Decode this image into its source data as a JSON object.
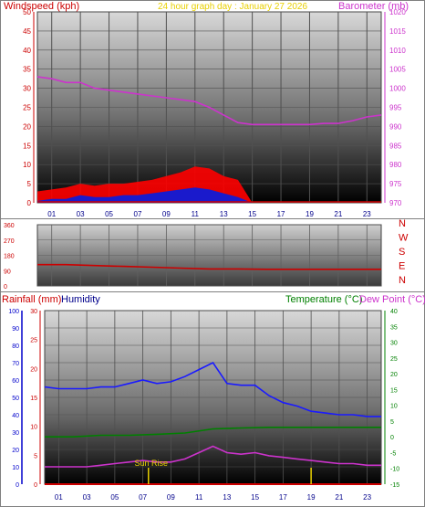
{
  "chart_data": [
    {
      "type": "line",
      "title": "24 hour graph day : January 27 2026",
      "left_axis_label": "Windspeed (kph)",
      "right_axis_label": "Barometer (mb)",
      "x_ticks": [
        "01",
        "03",
        "05",
        "07",
        "09",
        "11",
        "13",
        "15",
        "17",
        "19",
        "21",
        "23"
      ],
      "y_left_range": [
        0,
        50
      ],
      "y_left_ticks": [
        0,
        5,
        10,
        15,
        20,
        25,
        30,
        35,
        40,
        45,
        50
      ],
      "y_right_range": [
        970,
        1020
      ],
      "y_right_ticks": [
        970,
        975,
        980,
        985,
        990,
        995,
        1000,
        1005,
        1010,
        1015,
        1020
      ],
      "grid": true,
      "series": [
        {
          "name": "Barometer (mb)",
          "color": "#cc33cc",
          "axis": "right",
          "x": [
            0,
            1,
            2,
            3,
            4,
            5,
            6,
            7,
            8,
            9,
            10,
            11,
            12,
            13,
            14,
            15,
            16,
            17,
            18,
            19,
            20,
            21,
            22,
            23,
            24
          ],
          "values": [
            1003,
            1002.5,
            1001.5,
            1001.5,
            1000,
            999.5,
            999,
            998.5,
            998,
            997.5,
            997,
            996.5,
            995,
            993,
            991,
            990.5,
            990.5,
            990.5,
            990.5,
            990.5,
            990.8,
            990.8,
            991.5,
            992.5,
            993
          ]
        },
        {
          "name": "Wind gust",
          "color": "#ff0000",
          "axis": "left",
          "x": [
            0,
            1,
            2,
            3,
            4,
            5,
            6,
            7,
            8,
            9,
            10,
            11,
            12,
            13,
            14,
            15
          ],
          "values": [
            3,
            3.5,
            4,
            5,
            4.5,
            5,
            5,
            5.5,
            6,
            7,
            8,
            9.5,
            9,
            7,
            6,
            0
          ]
        },
        {
          "name": "Wind speed",
          "color": "#0000cc",
          "axis": "left",
          "x": [
            0,
            1,
            2,
            3,
            4,
            5,
            6,
            7,
            8,
            9,
            10,
            11,
            12,
            13,
            14,
            15
          ],
          "values": [
            0.5,
            1,
            1,
            2,
            1.5,
            1.5,
            2,
            2,
            2.5,
            3,
            3.5,
            4,
            3.5,
            2.5,
            1.5,
            0
          ]
        }
      ]
    },
    {
      "type": "line",
      "title": "",
      "x_ticks": [
        "01",
        "03",
        "05",
        "07",
        "09",
        "11",
        "13",
        "15",
        "17",
        "19",
        "21",
        "23"
      ],
      "y_range": [
        0,
        360
      ],
      "y_ticks": [
        0,
        90,
        180,
        270,
        360
      ],
      "direction_labels": [
        "N",
        "W",
        "S",
        "E",
        "N"
      ],
      "grid": true,
      "series": [
        {
          "name": "Wind direction",
          "color": "#cc0000",
          "x": [
            0,
            2,
            4,
            6,
            8,
            10,
            12,
            14,
            16,
            18,
            20,
            22,
            24
          ],
          "values": [
            125,
            125,
            120,
            115,
            110,
            105,
            100,
            100,
            98,
            98,
            98,
            98,
            98
          ]
        }
      ]
    },
    {
      "type": "line",
      "title": "",
      "left_axis_label_1": "Rainfall (mm)",
      "left_axis_label_2": "Humidity",
      "right_axis_label_1": "Temperature (°C)",
      "right_axis_label_2": "Dew Point (°C)",
      "x_ticks": [
        "01",
        "03",
        "05",
        "07",
        "09",
        "11",
        "13",
        "15",
        "17",
        "19",
        "21",
        "23"
      ],
      "humidity_range": [
        0,
        100
      ],
      "humidity_ticks": [
        0,
        10,
        20,
        30,
        40,
        50,
        60,
        70,
        80,
        90,
        100
      ],
      "rain_range": [
        0,
        30
      ],
      "rain_ticks": [
        0,
        5,
        10,
        15,
        20,
        25,
        30
      ],
      "temp_range": [
        -15,
        40
      ],
      "temp_ticks": [
        -15,
        -10,
        -5,
        0,
        5,
        10,
        15,
        20,
        25,
        30,
        35,
        40
      ],
      "annotations": [
        {
          "text": "Sun Rise",
          "x": 7.4
        },
        {
          "text": "",
          "x": 19
        }
      ],
      "grid": true,
      "series": [
        {
          "name": "Humidity",
          "color": "#1a1aff",
          "axis": "humidity",
          "x": [
            0,
            1,
            2,
            3,
            4,
            5,
            6,
            7,
            8,
            9,
            10,
            11,
            12,
            13,
            14,
            15,
            16,
            17,
            18,
            19,
            20,
            21,
            22,
            23,
            24
          ],
          "values": [
            56,
            55,
            55,
            55,
            56,
            56,
            58,
            60,
            58,
            59,
            62,
            66,
            70,
            58,
            57,
            57,
            51,
            47,
            45,
            42,
            41,
            40,
            40,
            39,
            39
          ]
        },
        {
          "name": "Temperature (°C)",
          "color": "#008000",
          "axis": "temp",
          "x": [
            0,
            2,
            4,
            6,
            8,
            10,
            12,
            14,
            16,
            18,
            20,
            22,
            24
          ],
          "values": [
            0,
            0,
            0.5,
            0.5,
            0.8,
            1.2,
            2.5,
            2.8,
            3,
            3,
            3,
            3,
            3
          ]
        },
        {
          "name": "Dew Point (°C)",
          "color": "#cc33cc",
          "axis": "temp",
          "x": [
            0,
            1,
            2,
            3,
            4,
            5,
            6,
            7,
            8,
            9,
            10,
            11,
            12,
            13,
            14,
            15,
            16,
            17,
            18,
            19,
            20,
            21,
            22,
            23,
            24
          ],
          "values": [
            -9.5,
            -9.5,
            -9.5,
            -9.5,
            -9,
            -8.5,
            -8,
            -7.5,
            -8,
            -8,
            -7,
            -5,
            -3,
            -5,
            -5.5,
            -5,
            -6,
            -6.5,
            -7,
            -7.5,
            -8,
            -8.5,
            -8.5,
            -9,
            -9
          ]
        },
        {
          "name": "Rainfall (mm)",
          "color": "#cc0000",
          "axis": "rain",
          "x": [
            0,
            24
          ],
          "values": [
            0,
            0
          ]
        }
      ]
    }
  ]
}
